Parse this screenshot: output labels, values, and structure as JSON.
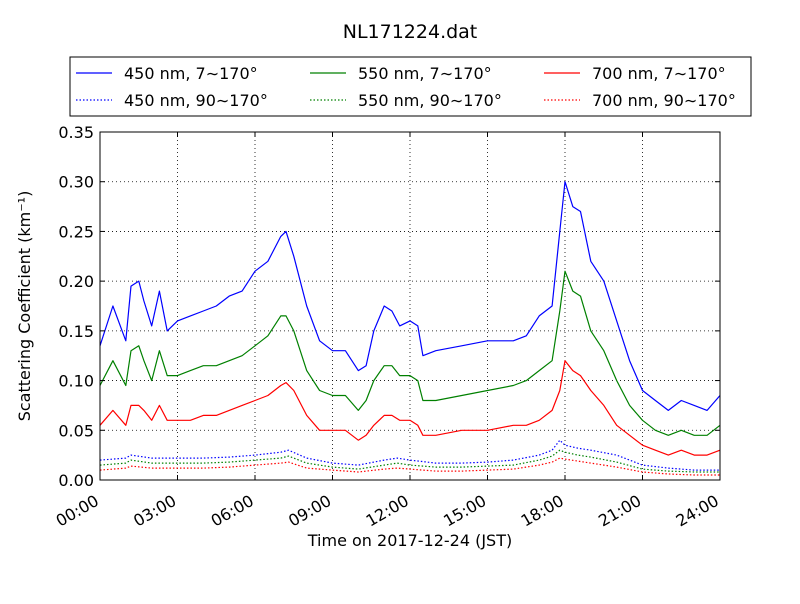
{
  "chart_data": {
    "type": "line",
    "title": "NL171224.dat",
    "xlabel": "Time on 2017-12-24 (JST)",
    "ylabel": "Scattering Coefficient (km⁻¹)",
    "xlim": [
      0,
      24
    ],
    "ylim": [
      0,
      0.35
    ],
    "x_ticks": [
      "00:00",
      "03:00",
      "06:00",
      "09:00",
      "12:00",
      "15:00",
      "18:00",
      "21:00",
      "24:00"
    ],
    "y_ticks": [
      "0.00",
      "0.05",
      "0.10",
      "0.15",
      "0.20",
      "0.25",
      "0.30",
      "0.35"
    ],
    "grid": true,
    "legend_position": "top",
    "series": [
      {
        "name": "450 nm, 7∼170°",
        "color": "#0000ff",
        "style": "solid",
        "x": [
          0,
          0.5,
          1,
          1.2,
          1.5,
          1.7,
          2,
          2.3,
          2.6,
          3,
          3.5,
          4,
          4.5,
          5,
          5.5,
          6,
          6.5,
          7,
          7.2,
          7.5,
          8,
          8.5,
          9,
          9.5,
          10,
          10.3,
          10.6,
          11,
          11.3,
          11.6,
          12,
          12.3,
          12.5,
          13,
          14,
          15,
          16,
          16.5,
          17,
          17.5,
          17.8,
          18,
          18.3,
          18.6,
          19,
          19.5,
          20,
          20.5,
          21,
          21.5,
          22,
          22.5,
          23,
          23.5,
          24
        ],
        "y": [
          0.135,
          0.175,
          0.14,
          0.195,
          0.2,
          0.18,
          0.155,
          0.19,
          0.15,
          0.16,
          0.165,
          0.17,
          0.175,
          0.185,
          0.19,
          0.21,
          0.22,
          0.245,
          0.25,
          0.225,
          0.175,
          0.14,
          0.13,
          0.13,
          0.11,
          0.115,
          0.15,
          0.175,
          0.17,
          0.155,
          0.16,
          0.155,
          0.125,
          0.13,
          0.135,
          0.14,
          0.14,
          0.145,
          0.165,
          0.175,
          0.25,
          0.3,
          0.275,
          0.27,
          0.22,
          0.2,
          0.16,
          0.12,
          0.09,
          0.08,
          0.07,
          0.08,
          0.075,
          0.07,
          0.085
        ]
      },
      {
        "name": "550 nm, 7∼170°",
        "color": "#008000",
        "style": "solid",
        "x": [
          0,
          0.5,
          1,
          1.2,
          1.5,
          1.7,
          2,
          2.3,
          2.6,
          3,
          3.5,
          4,
          4.5,
          5,
          5.5,
          6,
          6.5,
          7,
          7.2,
          7.5,
          8,
          8.5,
          9,
          9.5,
          10,
          10.3,
          10.6,
          11,
          11.3,
          11.6,
          12,
          12.3,
          12.5,
          13,
          14,
          15,
          16,
          16.5,
          17,
          17.5,
          17.8,
          18,
          18.3,
          18.6,
          19,
          19.5,
          20,
          20.5,
          21,
          21.5,
          22,
          22.5,
          23,
          23.5,
          24
        ],
        "y": [
          0.095,
          0.12,
          0.095,
          0.13,
          0.135,
          0.12,
          0.1,
          0.13,
          0.105,
          0.105,
          0.11,
          0.115,
          0.115,
          0.12,
          0.125,
          0.135,
          0.145,
          0.165,
          0.165,
          0.15,
          0.11,
          0.09,
          0.085,
          0.085,
          0.07,
          0.08,
          0.1,
          0.115,
          0.115,
          0.105,
          0.105,
          0.1,
          0.08,
          0.08,
          0.085,
          0.09,
          0.095,
          0.1,
          0.11,
          0.12,
          0.17,
          0.21,
          0.19,
          0.185,
          0.15,
          0.13,
          0.1,
          0.075,
          0.06,
          0.05,
          0.045,
          0.05,
          0.045,
          0.045,
          0.055
        ]
      },
      {
        "name": "700 nm, 7∼170°",
        "color": "#ff0000",
        "style": "solid",
        "x": [
          0,
          0.5,
          1,
          1.2,
          1.5,
          1.7,
          2,
          2.3,
          2.6,
          3,
          3.5,
          4,
          4.5,
          5,
          5.5,
          6,
          6.5,
          7,
          7.2,
          7.5,
          8,
          8.5,
          9,
          9.5,
          10,
          10.3,
          10.6,
          11,
          11.3,
          11.6,
          12,
          12.3,
          12.5,
          13,
          14,
          15,
          16,
          16.5,
          17,
          17.5,
          17.8,
          18,
          18.3,
          18.6,
          19,
          19.5,
          20,
          20.5,
          21,
          21.5,
          22,
          22.5,
          23,
          23.5,
          24
        ],
        "y": [
          0.055,
          0.07,
          0.055,
          0.075,
          0.075,
          0.07,
          0.06,
          0.075,
          0.06,
          0.06,
          0.06,
          0.065,
          0.065,
          0.07,
          0.075,
          0.08,
          0.085,
          0.095,
          0.098,
          0.09,
          0.065,
          0.05,
          0.05,
          0.05,
          0.04,
          0.045,
          0.055,
          0.065,
          0.065,
          0.06,
          0.06,
          0.055,
          0.045,
          0.045,
          0.05,
          0.05,
          0.055,
          0.055,
          0.06,
          0.07,
          0.09,
          0.12,
          0.11,
          0.105,
          0.09,
          0.075,
          0.055,
          0.045,
          0.035,
          0.03,
          0.025,
          0.03,
          0.025,
          0.025,
          0.03
        ]
      },
      {
        "name": "450 nm, 90∼170°",
        "color": "#0000ff",
        "style": "dotted",
        "x": [
          0,
          1,
          1.2,
          2,
          3,
          4,
          5,
          6,
          7,
          7.3,
          8,
          9,
          10,
          11,
          11.5,
          12,
          13,
          14,
          15,
          16,
          17,
          17.5,
          17.8,
          18,
          18.5,
          19,
          20,
          21,
          22,
          23,
          24
        ],
        "y": [
          0.02,
          0.022,
          0.025,
          0.022,
          0.022,
          0.022,
          0.023,
          0.025,
          0.028,
          0.03,
          0.022,
          0.017,
          0.015,
          0.02,
          0.022,
          0.02,
          0.017,
          0.017,
          0.018,
          0.02,
          0.025,
          0.03,
          0.04,
          0.035,
          0.032,
          0.03,
          0.025,
          0.015,
          0.012,
          0.01,
          0.01
        ]
      },
      {
        "name": "550 nm, 90∼170°",
        "color": "#008000",
        "style": "dotted",
        "x": [
          0,
          1,
          1.2,
          2,
          3,
          4,
          5,
          6,
          7,
          7.3,
          8,
          9,
          10,
          11,
          11.5,
          12,
          13,
          14,
          15,
          16,
          17,
          17.5,
          17.8,
          18,
          18.5,
          19,
          20,
          21,
          22,
          23,
          24
        ],
        "y": [
          0.015,
          0.017,
          0.02,
          0.017,
          0.017,
          0.017,
          0.018,
          0.02,
          0.022,
          0.024,
          0.017,
          0.013,
          0.011,
          0.015,
          0.017,
          0.015,
          0.013,
          0.013,
          0.014,
          0.015,
          0.02,
          0.024,
          0.03,
          0.028,
          0.025,
          0.023,
          0.018,
          0.011,
          0.009,
          0.008,
          0.008
        ]
      },
      {
        "name": "700 nm, 90∼170°",
        "color": "#ff0000",
        "style": "dotted",
        "x": [
          0,
          1,
          1.2,
          2,
          3,
          4,
          5,
          6,
          7,
          7.3,
          8,
          9,
          10,
          11,
          11.5,
          12,
          13,
          14,
          15,
          16,
          17,
          17.5,
          17.8,
          18,
          18.5,
          19,
          20,
          21,
          22,
          23,
          24
        ],
        "y": [
          0.01,
          0.012,
          0.014,
          0.012,
          0.012,
          0.012,
          0.013,
          0.015,
          0.017,
          0.018,
          0.012,
          0.01,
          0.008,
          0.011,
          0.012,
          0.011,
          0.009,
          0.009,
          0.01,
          0.011,
          0.015,
          0.018,
          0.022,
          0.021,
          0.019,
          0.017,
          0.013,
          0.008,
          0.006,
          0.005,
          0.005
        ]
      }
    ]
  }
}
